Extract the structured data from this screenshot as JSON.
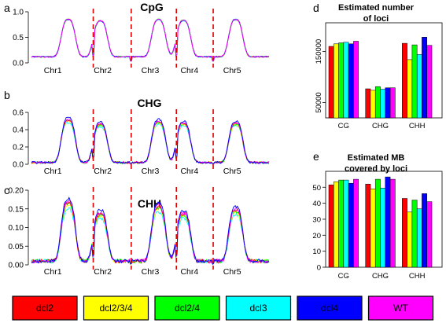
{
  "panels": {
    "a": {
      "letter": "a",
      "title": "CpG"
    },
    "b": {
      "letter": "b",
      "title": "CHG"
    },
    "c": {
      "letter": "c",
      "title": "CHH"
    },
    "d": {
      "letter": "d",
      "title_line1": "Estimated number",
      "title_line2": "of loci"
    },
    "e": {
      "letter": "e",
      "title_line1": "Estimated MB",
      "title_line2": "covered by loci"
    }
  },
  "legend": {
    "items": [
      {
        "label": "dcl2",
        "color": "#ff0000"
      },
      {
        "label": "dcl2/3/4",
        "color": "#ffff00"
      },
      {
        "label": "dcl2/4",
        "color": "#00ff00"
      },
      {
        "label": "dcl3",
        "color": "#00ffff"
      },
      {
        "label": "dcl4",
        "color": "#0000ff"
      },
      {
        "label": "WT",
        "color": "#ff00ff"
      }
    ]
  },
  "chart_data": [
    {
      "type": "line",
      "panel": "a",
      "title": "CpG",
      "categories": [
        "Chr1",
        "Chr2",
        "Chr3",
        "Chr4",
        "Chr5"
      ],
      "yticks": [
        "0.0",
        "0.5",
        "1.0"
      ],
      "ylim": [
        0,
        1.0
      ],
      "chromosome_separators": "red dashed",
      "centromere_peak_heights": [
        0.85,
        0.82,
        0.85,
        0.83,
        0.85
      ],
      "baseline": 0.12,
      "series_note": "all six genotypes overlap"
    },
    {
      "type": "line",
      "panel": "b",
      "title": "CHG",
      "categories": [
        "Chr1",
        "Chr2",
        "Chr3",
        "Chr4",
        "Chr5"
      ],
      "yticks": [
        "0.0",
        "0.2",
        "0.4",
        "0.6"
      ],
      "ylim": [
        0,
        0.6
      ],
      "chromosome_separators": "red dashed",
      "centromere_peak_heights": [
        0.52,
        0.47,
        0.5,
        0.48,
        0.48
      ],
      "baseline": 0.02
    },
    {
      "type": "line",
      "panel": "c",
      "title": "CHH",
      "categories": [
        "Chr1",
        "Chr2",
        "Chr3",
        "Chr4",
        "Chr5"
      ],
      "yticks": [
        "0.00",
        "0.05",
        "0.10",
        "0.15",
        "0.20"
      ],
      "ylim": [
        0,
        0.2
      ],
      "chromosome_separators": "red dashed",
      "centromere_peak_heights": [
        0.17,
        0.14,
        0.16,
        0.14,
        0.15
      ],
      "baseline": 0.01
    },
    {
      "type": "bar",
      "panel": "d",
      "title": "Estimated number of loci",
      "categories": [
        "CG",
        "CHG",
        "CHH"
      ],
      "yticks": [
        50000,
        150000
      ],
      "ylim": [
        20000,
        200000
      ],
      "series": [
        {
          "name": "dcl2",
          "values": [
            160000,
            77000,
            166000
          ]
        },
        {
          "name": "dcl2/3/4",
          "values": [
            165000,
            74000,
            134000
          ]
        },
        {
          "name": "dcl2/4",
          "values": [
            167000,
            81000,
            163000
          ]
        },
        {
          "name": "dcl3",
          "values": [
            168000,
            76000,
            144000
          ]
        },
        {
          "name": "dcl4",
          "values": [
            165000,
            79000,
            178000
          ]
        },
        {
          "name": "WT",
          "values": [
            170000,
            79000,
            162000
          ]
        }
      ]
    },
    {
      "type": "bar",
      "panel": "e",
      "title": "Estimated MB covered by loci",
      "categories": [
        "CG",
        "CHG",
        "CHH"
      ],
      "yticks": [
        0,
        10,
        20,
        30,
        40,
        50
      ],
      "ylim": [
        0,
        58
      ],
      "series": [
        {
          "name": "dcl2",
          "values": [
            51.5,
            52,
            43
          ]
        },
        {
          "name": "dcl2/3/4",
          "values": [
            53.5,
            49,
            34.5
          ]
        },
        {
          "name": "dcl2/4",
          "values": [
            54.5,
            55,
            42
          ]
        },
        {
          "name": "dcl3",
          "values": [
            54.5,
            49.5,
            36.5
          ]
        },
        {
          "name": "dcl4",
          "values": [
            52.5,
            56.5,
            46
          ]
        },
        {
          "name": "WT",
          "values": [
            55,
            55,
            41
          ]
        }
      ]
    }
  ]
}
